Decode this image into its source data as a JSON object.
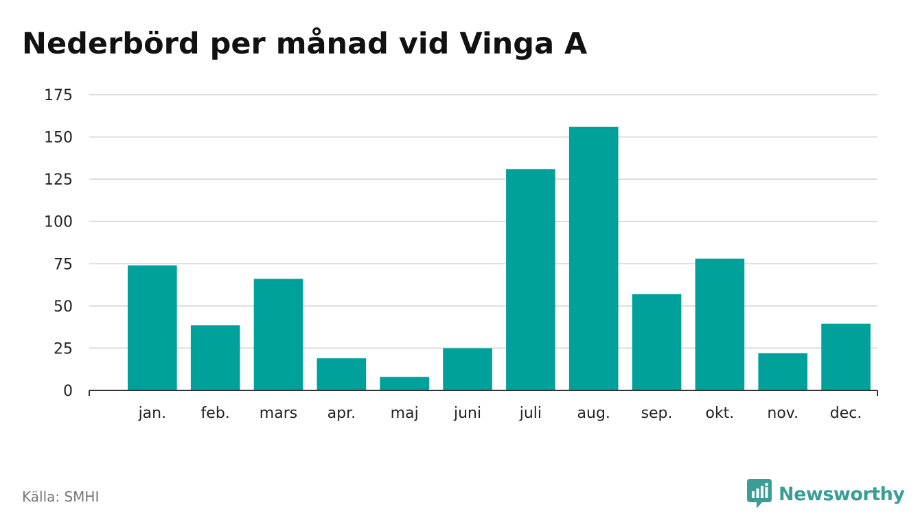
{
  "title": "Nederbörd per månad vid Vinga A",
  "source": "Källa: SMHI",
  "brand": {
    "name": "Newsworthy",
    "icon": "newsworthy-logo-icon",
    "color": "#3a9e96"
  },
  "colors": {
    "bar": "#00a19a",
    "grid": "#dddddd",
    "axis": "#333333"
  },
  "chart_data": {
    "type": "bar",
    "title": "Nederbörd per månad vid Vinga A",
    "xlabel": "",
    "ylabel": "",
    "categories": [
      "jan.",
      "feb.",
      "mars",
      "apr.",
      "maj",
      "juni",
      "juli",
      "aug.",
      "sep.",
      "okt.",
      "nov.",
      "dec."
    ],
    "values": [
      74,
      38.5,
      66,
      19,
      8,
      25,
      131,
      156,
      57,
      78,
      22,
      39.5
    ],
    "ylim": [
      0,
      175
    ],
    "yticks": [
      0,
      25,
      50,
      75,
      100,
      125,
      150,
      175
    ],
    "grid": true,
    "legend": "none"
  }
}
